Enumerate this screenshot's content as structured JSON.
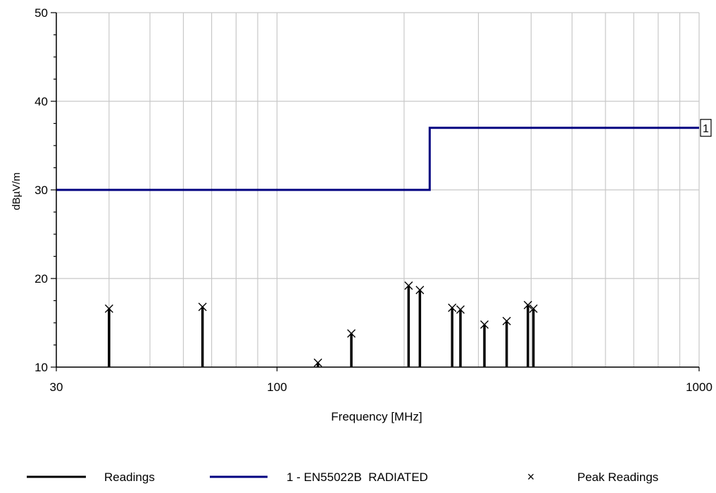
{
  "colors": {
    "background": "#ffffff",
    "grid": "#c8c8c8",
    "axis": "#000000",
    "readings": "#000000",
    "limit": "#000080",
    "peak": "#000000"
  },
  "chart_data": {
    "type": "line",
    "title": "",
    "xlabel": "Frequency [MHz]",
    "ylabel": "dBµV/m",
    "xscale": "log",
    "xlim": [
      30,
      1000
    ],
    "ylim": [
      10,
      50
    ],
    "x_ticks": [
      {
        "value": 30,
        "label": "30"
      },
      {
        "value": 100,
        "label": "100"
      },
      {
        "value": 1000,
        "label": "1000"
      }
    ],
    "y_ticks": [
      {
        "value": 10,
        "label": "10"
      },
      {
        "value": 20,
        "label": "20"
      },
      {
        "value": 30,
        "label": "30"
      },
      {
        "value": 40,
        "label": "40"
      },
      {
        "value": 50,
        "label": "50"
      }
    ],
    "x_gridlines": [
      30,
      40,
      50,
      60,
      70,
      80,
      90,
      100,
      200,
      300,
      400,
      500,
      600,
      700,
      800,
      900,
      1000
    ],
    "y_gridlines": [
      10,
      20,
      30,
      40,
      50
    ],
    "grid": true,
    "legend_position": "bottom",
    "series": [
      {
        "name": "Readings",
        "kind": "stem",
        "color": "#000000",
        "points": [
          {
            "x": 40.0,
            "y": 16.6
          },
          {
            "x": 66.6,
            "y": 16.8
          },
          {
            "x": 125.0,
            "y": 10.5
          },
          {
            "x": 150.0,
            "y": 13.8
          },
          {
            "x": 205.0,
            "y": 19.2
          },
          {
            "x": 218.0,
            "y": 18.7
          },
          {
            "x": 260.0,
            "y": 16.7
          },
          {
            "x": 272.0,
            "y": 16.5
          },
          {
            "x": 310.0,
            "y": 14.8
          },
          {
            "x": 350.0,
            "y": 15.2
          },
          {
            "x": 393.0,
            "y": 17.0
          },
          {
            "x": 405.0,
            "y": 16.6
          }
        ]
      },
      {
        "name": "1 - EN55022B  RADIATED",
        "kind": "step",
        "color": "#000080",
        "marker_label": "1",
        "points": [
          {
            "x": 30,
            "y": 30
          },
          {
            "x": 230,
            "y": 30
          },
          {
            "x": 230,
            "y": 37
          },
          {
            "x": 1000,
            "y": 37
          }
        ]
      },
      {
        "name": "Peak Readings",
        "kind": "marker",
        "color": "#000000",
        "marker": "×",
        "points": [
          {
            "x": 40.0,
            "y": 16.6
          },
          {
            "x": 66.6,
            "y": 16.8
          },
          {
            "x": 125.0,
            "y": 10.5
          },
          {
            "x": 150.0,
            "y": 13.8
          },
          {
            "x": 205.0,
            "y": 19.2
          },
          {
            "x": 218.0,
            "y": 18.7
          },
          {
            "x": 260.0,
            "y": 16.7
          },
          {
            "x": 272.0,
            "y": 16.5
          },
          {
            "x": 310.0,
            "y": 14.8
          },
          {
            "x": 350.0,
            "y": 15.2
          },
          {
            "x": 393.0,
            "y": 17.0
          },
          {
            "x": 405.0,
            "y": 16.6
          }
        ]
      }
    ]
  },
  "legend": {
    "items": [
      {
        "label": "Readings",
        "symbol": "line",
        "color": "#000000"
      },
      {
        "label": "1 - EN55022B  RADIATED",
        "symbol": "line",
        "color": "#000080"
      },
      {
        "label": "Peak Readings",
        "symbol": "×",
        "color": "#000000"
      }
    ]
  }
}
